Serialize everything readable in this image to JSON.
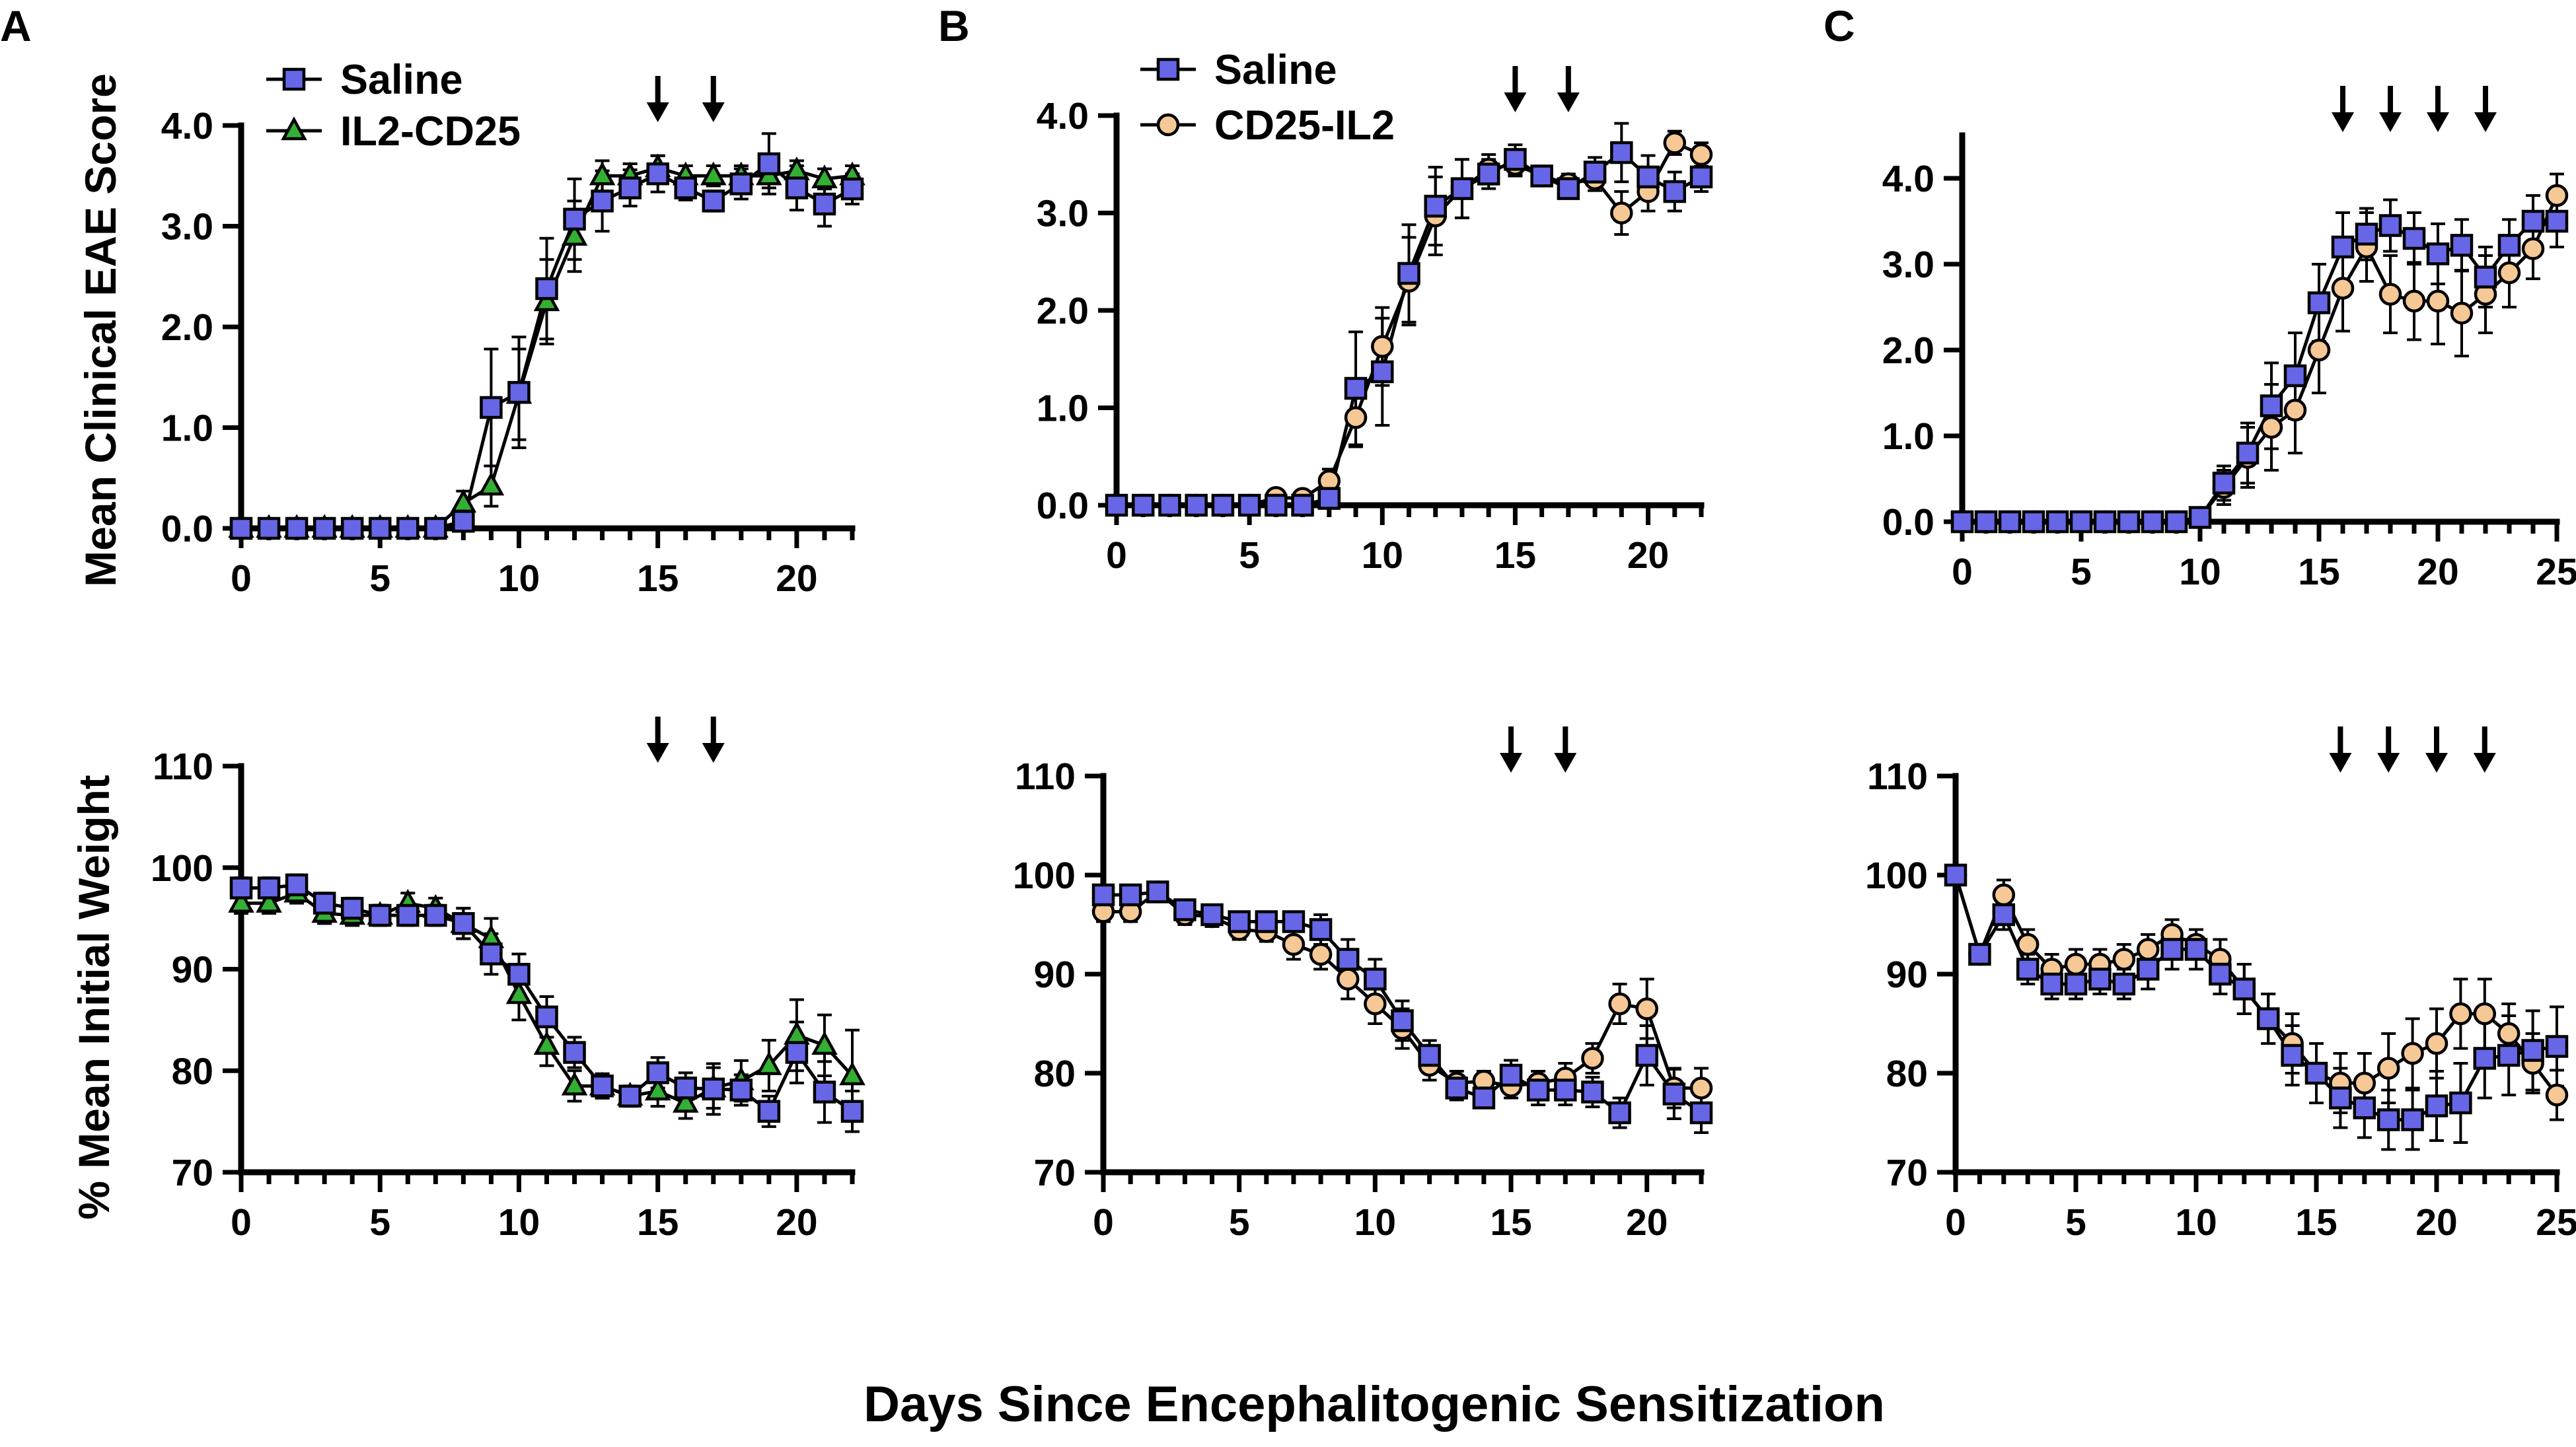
{
  "figure": {
    "xlabel": "Days Since Encephalitogenic Sensitization",
    "colors": {
      "saline": "#6666e6",
      "il2_cd25": "#33b033",
      "cd25_il2": "#f5c896",
      "axis": "#000000"
    }
  },
  "chart_data": [
    {
      "id": "A-top",
      "panel": "A",
      "type": "line",
      "ylabel": "Mean Clinical EAE  Score",
      "xlim": [
        0,
        22
      ],
      "ylim": [
        0,
        4
      ],
      "xticks": [
        "0",
        "5",
        "10",
        "15",
        "20"
      ],
      "yticks": [
        "0.0",
        "1.0",
        "2.0",
        "3.0",
        "4.0"
      ],
      "arrows_at_days": [
        15,
        17
      ],
      "legend_placement": "top-left",
      "series": [
        {
          "name": "Saline",
          "marker": "square",
          "color": "#6666e6",
          "x": [
            0,
            1,
            2,
            3,
            4,
            5,
            6,
            7,
            8,
            9,
            10,
            11,
            12,
            13,
            14,
            15,
            16,
            17,
            18,
            19,
            20,
            21,
            22
          ],
          "y": [
            0,
            0,
            0,
            0,
            0,
            0,
            0,
            0,
            0.07,
            1.2,
            1.35,
            2.38,
            3.07,
            3.25,
            3.38,
            3.52,
            3.38,
            3.25,
            3.42,
            3.62,
            3.38,
            3.22,
            3.37
          ],
          "err": [
            0,
            0,
            0,
            0,
            0,
            0,
            0,
            0,
            0.08,
            0.58,
            0.55,
            0.5,
            0.4,
            0.3,
            0.18,
            0.18,
            0.12,
            0.1,
            0.15,
            0.3,
            0.22,
            0.22,
            0.15
          ]
        },
        {
          "name": "IL2-CD25",
          "marker": "triangle",
          "color": "#33b033",
          "x": [
            0,
            1,
            2,
            3,
            4,
            5,
            6,
            7,
            8,
            9,
            10,
            11,
            12,
            13,
            14,
            15,
            16,
            17,
            18,
            19,
            20,
            21,
            22
          ],
          "y": [
            0,
            0,
            0,
            0,
            0,
            0,
            0,
            0,
            0.25,
            0.42,
            1.33,
            2.25,
            2.9,
            3.5,
            3.5,
            3.58,
            3.5,
            3.5,
            3.5,
            3.5,
            3.55,
            3.47,
            3.5
          ],
          "err": [
            0,
            0,
            0,
            0,
            0,
            0,
            0,
            0,
            0.12,
            0.2,
            0.45,
            0.42,
            0.35,
            0.15,
            0.12,
            0.12,
            0.1,
            0.1,
            0.1,
            0.12,
            0.1,
            0.1,
            0.1
          ]
        }
      ]
    },
    {
      "id": "B-top",
      "panel": "B",
      "type": "line",
      "ylabel": "",
      "xlim": [
        0,
        22
      ],
      "ylim": [
        0,
        4
      ],
      "xticks": [
        "0",
        "5",
        "10",
        "15",
        "20"
      ],
      "yticks": [
        "0.0",
        "1.0",
        "2.0",
        "3.0",
        "4.0"
      ],
      "arrows_at_days": [
        15,
        17
      ],
      "legend_placement": "top-left",
      "series": [
        {
          "name": "Saline",
          "marker": "square",
          "color": "#6666e6",
          "x": [
            0,
            1,
            2,
            3,
            4,
            5,
            6,
            7,
            8,
            9,
            10,
            11,
            12,
            13,
            14,
            15,
            16,
            17,
            18,
            19,
            20,
            21,
            22
          ],
          "y": [
            0,
            0,
            0,
            0,
            0,
            0,
            0,
            0,
            0.07,
            1.2,
            1.37,
            2.38,
            3.07,
            3.25,
            3.4,
            3.55,
            3.38,
            3.25,
            3.42,
            3.62,
            3.37,
            3.22,
            3.37
          ],
          "err": [
            0,
            0,
            0,
            0,
            0,
            0,
            0,
            0,
            0.06,
            0.58,
            0.55,
            0.5,
            0.4,
            0.3,
            0.15,
            0.15,
            0.1,
            0.08,
            0.15,
            0.3,
            0.22,
            0.2,
            0.15
          ]
        },
        {
          "name": "CD25-IL2",
          "marker": "circle",
          "color": "#f5c896",
          "x": [
            0,
            1,
            2,
            3,
            4,
            5,
            6,
            7,
            8,
            9,
            10,
            11,
            12,
            13,
            14,
            15,
            16,
            17,
            18,
            19,
            20,
            21,
            22
          ],
          "y": [
            0,
            0,
            0,
            0,
            0,
            0,
            0.08,
            0.07,
            0.25,
            0.9,
            1.63,
            2.3,
            2.97,
            3.25,
            3.45,
            3.5,
            3.38,
            3.3,
            3.35,
            3.0,
            3.22,
            3.72,
            3.6
          ],
          "err": [
            0,
            0,
            0,
            0,
            0,
            0,
            0.05,
            0.05,
            0.12,
            0.3,
            0.4,
            0.45,
            0.4,
            0.3,
            0.15,
            0.12,
            0.1,
            0.1,
            0.12,
            0.22,
            0.2,
            0.12,
            0.12
          ]
        }
      ]
    },
    {
      "id": "C-top",
      "panel": "C",
      "type": "line",
      "ylabel": "",
      "xlim": [
        0,
        25
      ],
      "ylim": [
        0,
        4.5
      ],
      "xticks": [
        "0",
        "5",
        "10",
        "15",
        "20",
        "25"
      ],
      "yticks": [
        "0.0",
        "1.0",
        "2.0",
        "3.0",
        "4.0"
      ],
      "arrows_at_days": [
        16,
        18,
        20,
        22
      ],
      "legend_placement": "none",
      "series": [
        {
          "name": "Saline",
          "marker": "square",
          "color": "#6666e6",
          "x": [
            0,
            1,
            2,
            3,
            4,
            5,
            6,
            7,
            8,
            9,
            10,
            11,
            12,
            13,
            14,
            15,
            16,
            17,
            18,
            19,
            20,
            21,
            22,
            23,
            24,
            25
          ],
          "y": [
            0,
            0,
            0,
            0,
            0,
            0,
            0,
            0,
            0,
            0,
            0.05,
            0.45,
            0.8,
            1.35,
            1.7,
            2.55,
            3.2,
            3.35,
            3.45,
            3.3,
            3.12,
            3.22,
            2.85,
            3.22,
            3.5,
            3.5
          ],
          "err": [
            0,
            0,
            0,
            0,
            0,
            0,
            0,
            0,
            0,
            0,
            0.05,
            0.2,
            0.35,
            0.5,
            0.5,
            0.45,
            0.4,
            0.3,
            0.3,
            0.3,
            0.35,
            0.3,
            0.35,
            0.3,
            0.3,
            0.3
          ]
        },
        {
          "name": "CD25-IL2",
          "marker": "circle",
          "color": "#f5c896",
          "x": [
            0,
            1,
            2,
            3,
            4,
            5,
            6,
            7,
            8,
            9,
            10,
            11,
            12,
            13,
            14,
            15,
            16,
            17,
            18,
            19,
            20,
            21,
            22,
            23,
            24,
            25
          ],
          "y": [
            0,
            0,
            0,
            0,
            0,
            0,
            0,
            0,
            0,
            0,
            0.05,
            0.4,
            0.75,
            1.1,
            1.3,
            2.0,
            2.72,
            3.2,
            2.65,
            2.57,
            2.57,
            2.43,
            2.65,
            2.9,
            3.18,
            3.8
          ],
          "err": [
            0,
            0,
            0,
            0,
            0,
            0,
            0,
            0,
            0,
            0,
            0.05,
            0.2,
            0.35,
            0.5,
            0.5,
            0.5,
            0.5,
            0.4,
            0.45,
            0.45,
            0.5,
            0.5,
            0.45,
            0.4,
            0.35,
            0.25
          ]
        }
      ]
    },
    {
      "id": "A-bottom",
      "panel": "A",
      "type": "line",
      "ylabel": "% Mean Initial Weight",
      "xlim": [
        0,
        22
      ],
      "ylim": [
        70,
        110
      ],
      "xticks": [
        "0",
        "5",
        "10",
        "15",
        "20"
      ],
      "yticks": [
        "70",
        "80",
        "90",
        "100",
        "110"
      ],
      "arrows_at_days": [
        15,
        17
      ],
      "legend_placement": "none",
      "series": [
        {
          "name": "Saline",
          "marker": "square",
          "color": "#6666e6",
          "x": [
            0,
            1,
            2,
            3,
            4,
            5,
            6,
            7,
            8,
            9,
            10,
            11,
            12,
            13,
            14,
            15,
            16,
            17,
            18,
            19,
            20,
            21,
            22
          ],
          "y": [
            98,
            98,
            98.3,
            96.5,
            96,
            95.3,
            95.3,
            95.3,
            94.5,
            91.5,
            89.5,
            85.3,
            81.8,
            78.5,
            77.5,
            79.8,
            78.3,
            78.2,
            78.1,
            76,
            81.8,
            77.9,
            76
          ],
          "err": [
            1,
            1,
            1,
            1,
            1,
            1,
            1,
            1,
            1.5,
            2,
            2,
            2,
            1.5,
            1.2,
            1,
            1.5,
            1.5,
            2.5,
            1.5,
            1.5,
            3,
            3,
            2
          ]
        },
        {
          "name": "IL2-CD25",
          "marker": "triangle",
          "color": "#33b033",
          "x": [
            0,
            1,
            2,
            3,
            4,
            5,
            6,
            7,
            8,
            9,
            10,
            11,
            12,
            13,
            14,
            15,
            16,
            17,
            18,
            19,
            20,
            21,
            22
          ],
          "y": [
            96.5,
            96.5,
            97.5,
            95.5,
            95.3,
            95.3,
            96.5,
            96,
            94.5,
            93,
            87.5,
            82.5,
            78.5,
            78.5,
            77.5,
            78,
            76.8,
            78.3,
            79,
            80.5,
            83.5,
            82.5,
            79.5
          ],
          "err": [
            1,
            1,
            1,
            1,
            1,
            1,
            1,
            1,
            1.5,
            2,
            2.5,
            2,
            1.5,
            1.2,
            1,
            1.5,
            1.5,
            2,
            2,
            2.5,
            3.5,
            3,
            4.5
          ]
        }
      ]
    },
    {
      "id": "B-bottom",
      "panel": "B",
      "type": "line",
      "ylabel": "",
      "xlim": [
        0,
        22
      ],
      "ylim": [
        70,
        110
      ],
      "xticks": [
        "0",
        "5",
        "10",
        "15",
        "20"
      ],
      "yticks": [
        "70",
        "80",
        "90",
        "100",
        "110"
      ],
      "arrows_at_days": [
        15,
        17
      ],
      "legend_placement": "none",
      "series": [
        {
          "name": "Saline",
          "marker": "square",
          "color": "#6666e6",
          "x": [
            0,
            1,
            2,
            3,
            4,
            5,
            6,
            7,
            8,
            9,
            10,
            11,
            12,
            13,
            14,
            15,
            16,
            17,
            18,
            19,
            20,
            21,
            22
          ],
          "y": [
            98,
            98,
            98.3,
            96.5,
            96,
            95.3,
            95.3,
            95.3,
            94.5,
            91.5,
            89.5,
            85.3,
            81.8,
            78.5,
            77.5,
            79.8,
            78.3,
            78.3,
            78.1,
            76,
            81.8,
            77.9,
            76
          ],
          "err": [
            1,
            1,
            1,
            1,
            1,
            1,
            1,
            1,
            1.5,
            2,
            2,
            2,
            1.5,
            1.2,
            1,
            1.5,
            1.5,
            1.5,
            1.5,
            1.5,
            3,
            2.5,
            2
          ]
        },
        {
          "name": "CD25-IL2",
          "marker": "circle",
          "color": "#f5c896",
          "x": [
            0,
            1,
            2,
            3,
            4,
            5,
            6,
            7,
            8,
            9,
            10,
            11,
            12,
            13,
            14,
            15,
            16,
            17,
            18,
            19,
            20,
            21,
            22
          ],
          "y": [
            96.3,
            96.3,
            98.3,
            96,
            95.8,
            94.5,
            94.3,
            93,
            92,
            89.5,
            87,
            84.5,
            80.8,
            79,
            79.2,
            78.7,
            79,
            79.5,
            81.5,
            87,
            86.5,
            78.5,
            78.5
          ],
          "err": [
            1,
            1,
            1,
            1,
            1,
            1,
            1,
            1.5,
            1.5,
            2,
            2,
            2,
            1.5,
            1.2,
            1,
            1.2,
            1.2,
            1.5,
            1.5,
            2,
            3,
            2,
            2
          ]
        }
      ]
    },
    {
      "id": "C-bottom",
      "panel": "C",
      "type": "line",
      "ylabel": "",
      "xlim": [
        0,
        25
      ],
      "ylim": [
        70,
        110
      ],
      "xticks": [
        "0",
        "5",
        "10",
        "15",
        "20",
        "25"
      ],
      "yticks": [
        "70",
        "80",
        "90",
        "100",
        "110"
      ],
      "arrows_at_days": [
        16,
        18,
        20,
        22
      ],
      "legend_placement": "none",
      "series": [
        {
          "name": "Saline",
          "marker": "square",
          "color": "#6666e6",
          "x": [
            0,
            1,
            2,
            3,
            4,
            5,
            6,
            7,
            8,
            9,
            10,
            11,
            12,
            13,
            14,
            15,
            16,
            17,
            18,
            19,
            20,
            21,
            22,
            23,
            24,
            25
          ],
          "y": [
            100,
            92,
            96,
            90.5,
            89,
            89,
            89.5,
            89,
            90.5,
            92.5,
            92.5,
            90,
            88.5,
            85.5,
            81.8,
            80,
            77.5,
            76.5,
            75.3,
            75.3,
            76.7,
            77,
            81.5,
            81.8,
            82.3,
            82.7
          ],
          "err": [
            0.5,
            1,
            1.5,
            1.5,
            1.5,
            1.5,
            1.5,
            1.5,
            2,
            2,
            2,
            2,
            2.5,
            2.5,
            3,
            3,
            3,
            3,
            3,
            3,
            3.5,
            4,
            4,
            4,
            4,
            4
          ]
        },
        {
          "name": "CD25-IL2",
          "marker": "circle",
          "color": "#f5c896",
          "x": [
            0,
            1,
            2,
            3,
            4,
            5,
            6,
            7,
            8,
            9,
            10,
            11,
            12,
            13,
            14,
            15,
            16,
            17,
            18,
            19,
            20,
            21,
            22,
            23,
            24,
            25
          ],
          "y": [
            100,
            92,
            98,
            93,
            90.5,
            91,
            91,
            91.5,
            92.5,
            94,
            93,
            91.5,
            88.5,
            85.5,
            83,
            80,
            79,
            79,
            80.5,
            82,
            83,
            86,
            86,
            84,
            81,
            77.8
          ],
          "err": [
            0.5,
            1,
            1.5,
            1.5,
            1.5,
            1.5,
            1.5,
            1.5,
            1.5,
            1.5,
            1.5,
            2,
            2.5,
            2.5,
            3,
            3,
            3,
            3,
            3.5,
            3.5,
            3.5,
            3.5,
            3.5,
            3,
            3,
            2.5
          ]
        }
      ]
    }
  ]
}
